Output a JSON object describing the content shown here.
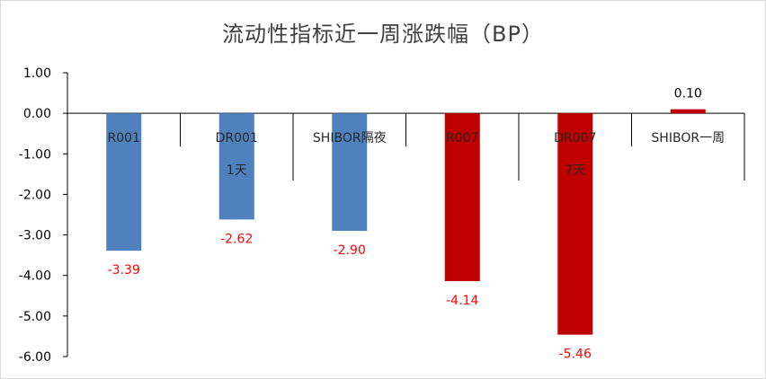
{
  "chart_data": {
    "type": "bar",
    "title": "流动性指标近一周涨跌幅（BP）",
    "categories": [
      [
        "R001"
      ],
      [
        "DR001",
        "1天"
      ],
      [
        "SHIBOR隔夜"
      ],
      [
        "R007"
      ],
      [
        "DR007",
        "7天"
      ],
      [
        "SHIBOR一周"
      ]
    ],
    "values": [
      -3.39,
      -2.62,
      -2.9,
      -4.14,
      -5.46,
      0.1
    ],
    "value_labels": [
      "-3.39",
      "-2.62",
      "-2.90",
      "-4.14",
      "-5.46",
      "0.10"
    ],
    "bar_colors": [
      "#4f81bd",
      "#4f81bd",
      "#4f81bd",
      "#c00000",
      "#c00000",
      "#c00000"
    ],
    "label_colors": [
      "#ff0000",
      "#ff0000",
      "#ff0000",
      "#ff0000",
      "#ff0000",
      "#000000"
    ],
    "ylim": [
      -6,
      1
    ],
    "yticks": [
      1,
      0,
      -1,
      -2,
      -3,
      -4,
      -5,
      -6
    ],
    "ytick_labels": [
      "1.00",
      "0.00",
      "-1.00",
      "-2.00",
      "-3.00",
      "-4.00",
      "-5.00",
      "-6.00"
    ],
    "grid": false,
    "legend": "none",
    "xlabel": "",
    "ylabel": ""
  }
}
